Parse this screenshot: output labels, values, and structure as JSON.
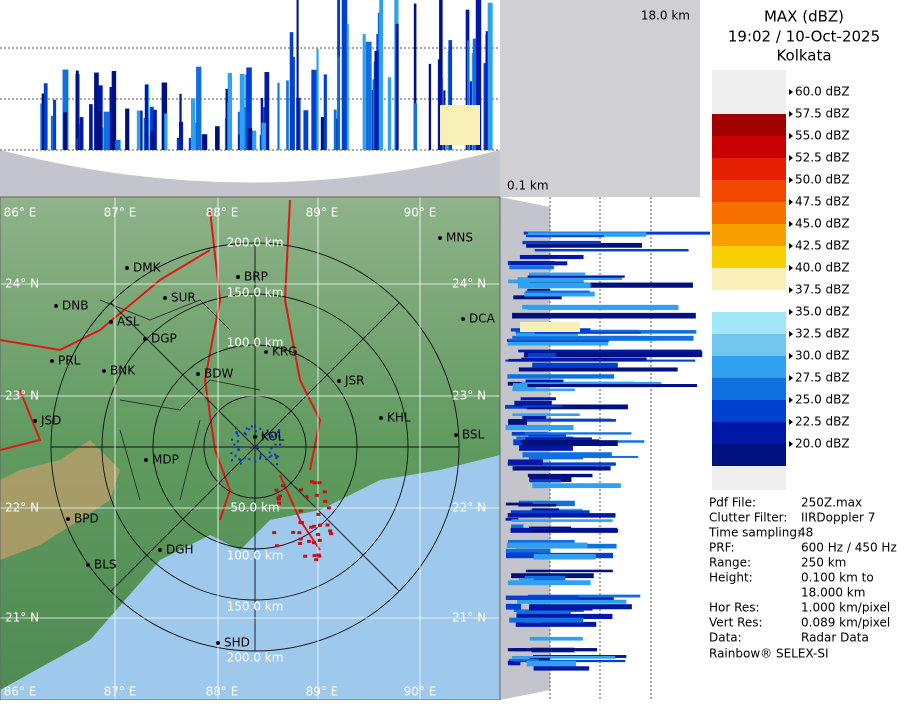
{
  "header": {
    "title": "MAX (dBZ)",
    "time": "19:02 / 10-Oct-2025",
    "station": "Kolkata"
  },
  "panels": {
    "top_height": "18.0 km",
    "side_height": "0.1 km"
  },
  "legend": {
    "labels": [
      "60.0 dBZ",
      "57.5 dBZ",
      "55.0 dBZ",
      "52.5 dBZ",
      "50.0 dBZ",
      "47.5 dBZ",
      "45.0 dBZ",
      "42.5 dBZ",
      "40.0 dBZ",
      "37.5 dBZ",
      "35.0 dBZ",
      "32.5 dBZ",
      "30.0 dBZ",
      "27.5 dBZ",
      "25.0 dBZ",
      "22.5 dBZ",
      "20.0 dBZ"
    ],
    "colors": [
      "#a00000",
      "#c80000",
      "#e42000",
      "#f04800",
      "#f87000",
      "#f8a000",
      "#f8d000",
      "#f8f0b8",
      "#ffffff",
      "#a0e8f8",
      "#70c8f0",
      "#30a0f0",
      "#1070e0",
      "#0040d0",
      "#0018a8",
      "#00107c"
    ]
  },
  "info": [
    [
      "Pdf File:",
      "250Z.max"
    ],
    [
      "Clutter Filter:",
      "IIRDoppler 7"
    ],
    [
      "Time sampling:",
      "48"
    ],
    [
      "PRF:",
      "600 Hz / 450 Hz"
    ],
    [
      "Range:",
      "250 km"
    ],
    [
      "Height:",
      "0.100 km to"
    ],
    [
      "",
      "18.000 km"
    ],
    [
      "Hor Res:",
      "1.000 km/pixel"
    ],
    [
      "Vert Res:",
      "0.089 km/pixel"
    ],
    [
      "Data:",
      "Radar Data"
    ]
  ],
  "credit": "Rainbow® SELEX-SI",
  "map": {
    "lon_labels": [
      "86° E",
      "87° E",
      "88° E",
      "89° E",
      "90° E"
    ],
    "lat_labels": [
      "24° N",
      "23° N",
      "22° N",
      "21° N"
    ],
    "ring_labels_north": [
      "200.0 km",
      "150.0 km",
      "100.0 km"
    ],
    "ring_labels_south": [
      "50.0 km",
      "100.0 km",
      "150.0 km",
      "200.0 km"
    ],
    "cities": [
      "MNS",
      "DMK",
      "BRP",
      "DNB",
      "ASL",
      "SUR",
      "DGP",
      "KRG",
      "PRL",
      "BNK",
      "BDW",
      "JSR",
      "DCA",
      "KHL",
      "JSD",
      "BSL",
      "KOL",
      "MDP",
      "BPD",
      "DGH",
      "BLS",
      "SHD"
    ]
  }
}
